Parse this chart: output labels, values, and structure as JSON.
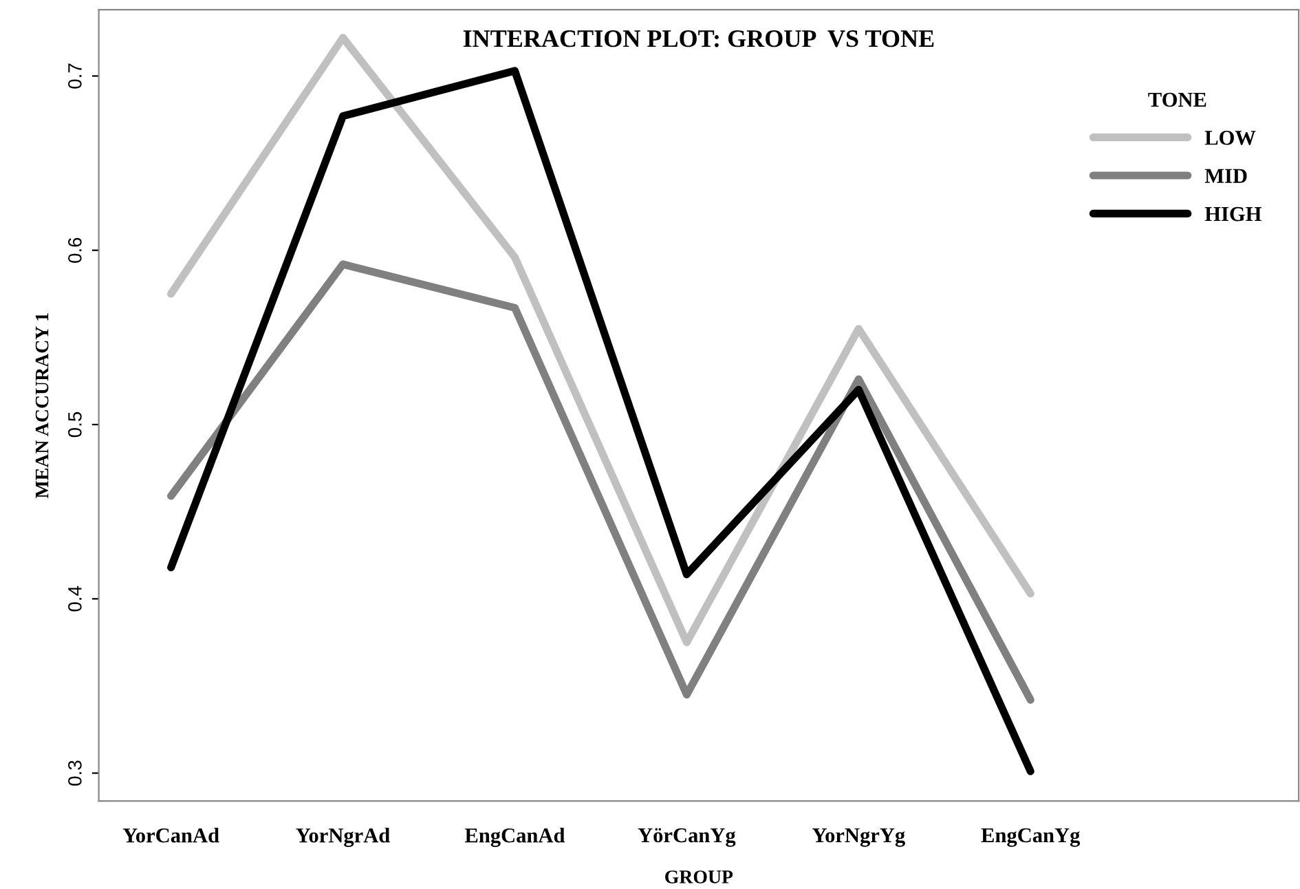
{
  "chart_data": {
    "type": "line",
    "title": "INTERACTION PLOT: GROUP  VS TONE",
    "xlabel": "GROUP",
    "ylabel": "MEAN ACCURACY 1",
    "legend_title": "TONE",
    "categories": [
      "YorCanAd",
      "YorNgrAd",
      "EngCanAd",
      "YörCanYg",
      "YorNgrYg",
      "EngCanYg"
    ],
    "series": [
      {
        "name": "LOW",
        "color": "#c0c0c0",
        "values": [
          0.575,
          0.722,
          0.596,
          0.375,
          0.555,
          0.403
        ]
      },
      {
        "name": "MID",
        "color": "#808080",
        "values": [
          0.459,
          0.592,
          0.567,
          0.345,
          0.526,
          0.342
        ]
      },
      {
        "name": "HIGH",
        "color": "#000000",
        "values": [
          0.418,
          0.677,
          0.703,
          0.414,
          0.52,
          0.301
        ]
      }
    ],
    "ylim": [
      0.284,
      0.738
    ],
    "yticks": [
      0.3,
      0.4,
      0.5,
      0.6,
      0.7
    ],
    "grid": false,
    "legend": "top right",
    "marker": "none",
    "line_style": "solid"
  }
}
